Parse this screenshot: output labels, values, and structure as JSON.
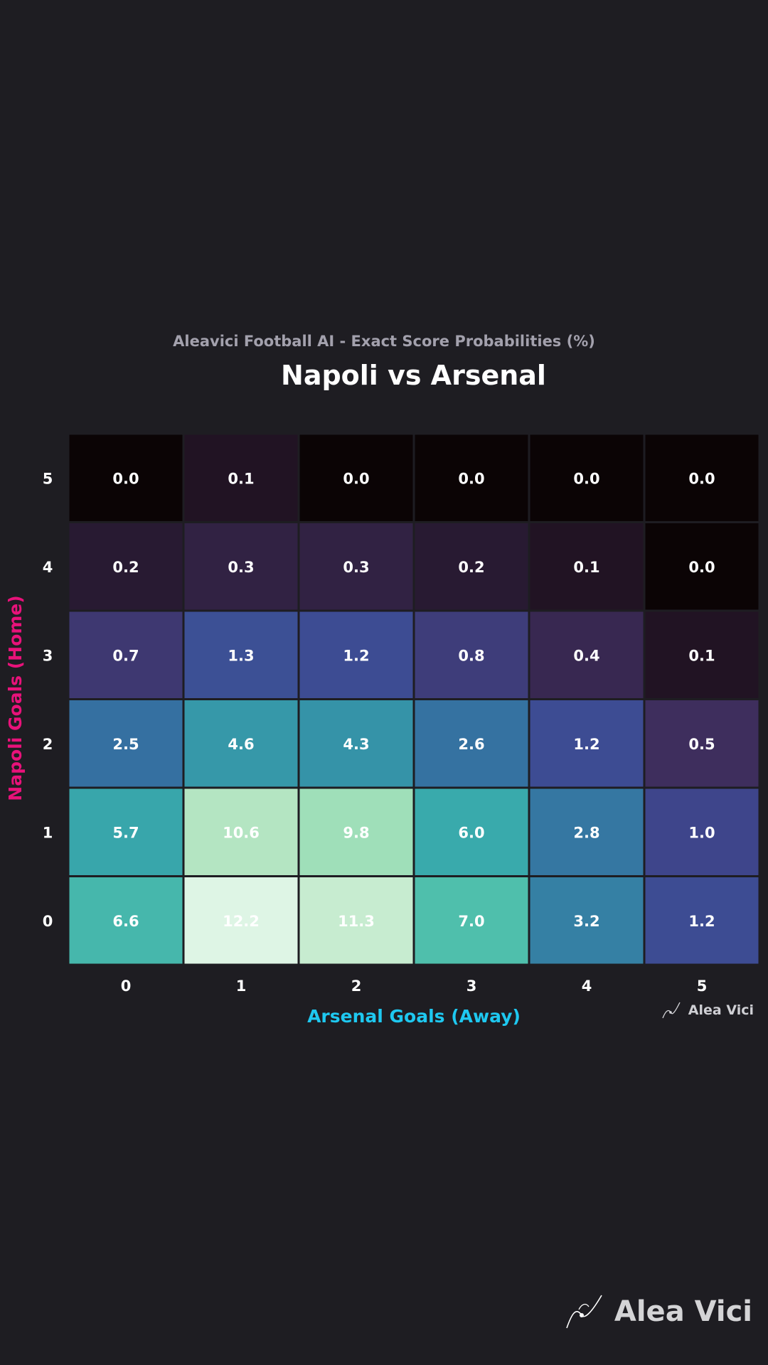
{
  "chart_data": {
    "type": "heatmap",
    "subtitle": "Aleavici Football AI - Exact Score Probabilities (%)",
    "title": "Napoli vs Arsenal",
    "xlabel": "Arsenal Goals (Away)",
    "ylabel": "Napoli Goals (Home)",
    "x_categories": [
      "0",
      "1",
      "2",
      "3",
      "4",
      "5"
    ],
    "y_categories": [
      "0",
      "1",
      "2",
      "3",
      "4",
      "5"
    ],
    "values_by_home_goals": [
      [
        6.6,
        12.2,
        11.3,
        7.0,
        3.2,
        1.2
      ],
      [
        5.7,
        10.6,
        9.8,
        6.0,
        2.8,
        1.0
      ],
      [
        2.5,
        4.6,
        4.3,
        2.6,
        1.2,
        0.5
      ],
      [
        0.7,
        1.3,
        1.2,
        0.8,
        0.4,
        0.1
      ],
      [
        0.2,
        0.3,
        0.3,
        0.2,
        0.1,
        0.0
      ],
      [
        0.0,
        0.1,
        0.0,
        0.0,
        0.0,
        0.0
      ]
    ],
    "colormap": "mako",
    "grid": true
  },
  "branding": {
    "small_logo_text": "Alea Vici",
    "big_logo_text": "Alea Vici",
    "logo_icon": "dice-swoosh-icon"
  },
  "colors": {
    "background": "#1e1d22",
    "xlabel": "#1ec8f0",
    "ylabel": "#e8127a",
    "subtitle": "#a3a1ad"
  }
}
